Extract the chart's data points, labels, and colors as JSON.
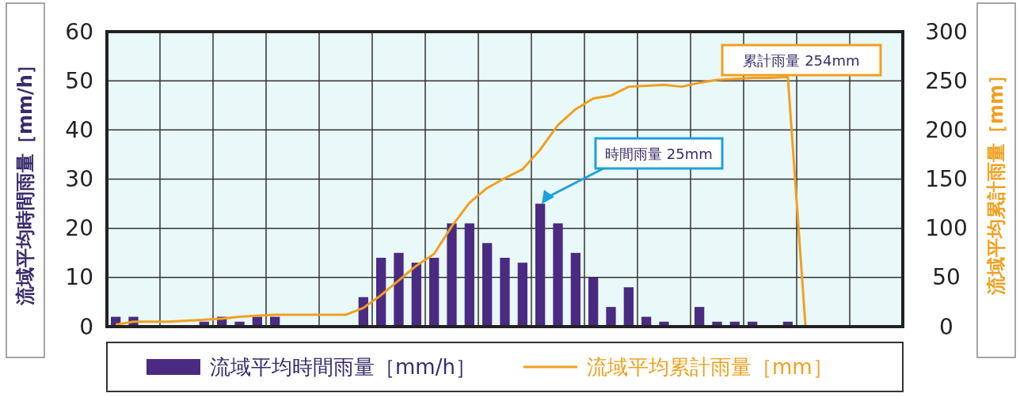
{
  "chart_data": {
    "type": "bar",
    "categories": [
      null,
      null,
      null,
      null,
      null,
      null,
      null,
      null,
      null,
      null,
      null,
      null,
      null,
      null,
      null,
      null,
      null,
      null,
      null,
      null,
      null,
      null,
      null,
      null,
      null,
      null,
      null,
      null,
      null,
      null,
      null,
      null,
      null,
      null,
      null,
      null,
      null,
      null,
      null,
      null,
      null,
      null,
      null,
      null,
      null
    ],
    "series": [
      {
        "name": "流域平均時間雨量［mm/h］",
        "color": "#4b2a82",
        "values": [
          2,
          2,
          0,
          0,
          0,
          1,
          2,
          1,
          2,
          2,
          0,
          0,
          0,
          0,
          6,
          14,
          15,
          13,
          14,
          21,
          21,
          17,
          14,
          13,
          25,
          21,
          15,
          10,
          4,
          8,
          2,
          1,
          0,
          4,
          1,
          1,
          1,
          0,
          1,
          0,
          0,
          0,
          0,
          0,
          0
        ]
      },
      {
        "name": "流域平均累計雨量［mm］",
        "type": "line",
        "axis": "y2",
        "color": "#f0a020",
        "values": [
          2,
          5,
          5,
          5,
          6,
          7,
          8,
          10,
          11,
          12,
          12,
          12,
          12,
          12,
          19,
          32,
          47,
          62,
          74,
          102,
          126,
          141,
          151,
          160,
          180,
          205,
          221,
          232,
          235,
          244,
          245,
          246,
          244,
          248,
          251,
          252,
          253,
          253,
          254,
          0,
          null,
          null,
          null,
          null,
          null
        ]
      }
    ],
    "ylabel": "流域平均時間雨量［mm/h］",
    "y2label": "流域平均累計雨量［mm］",
    "ylim": [
      0,
      60
    ],
    "yticks": [
      0,
      10,
      20,
      30,
      40,
      50,
      60
    ],
    "y2lim": [
      0,
      300
    ],
    "y2ticks": [
      0,
      50,
      100,
      150,
      200,
      250,
      300
    ],
    "grid": true,
    "legend": "bottom",
    "annotations": [
      "累計雨量 254mm",
      "時間雨量 25mm"
    ]
  }
}
